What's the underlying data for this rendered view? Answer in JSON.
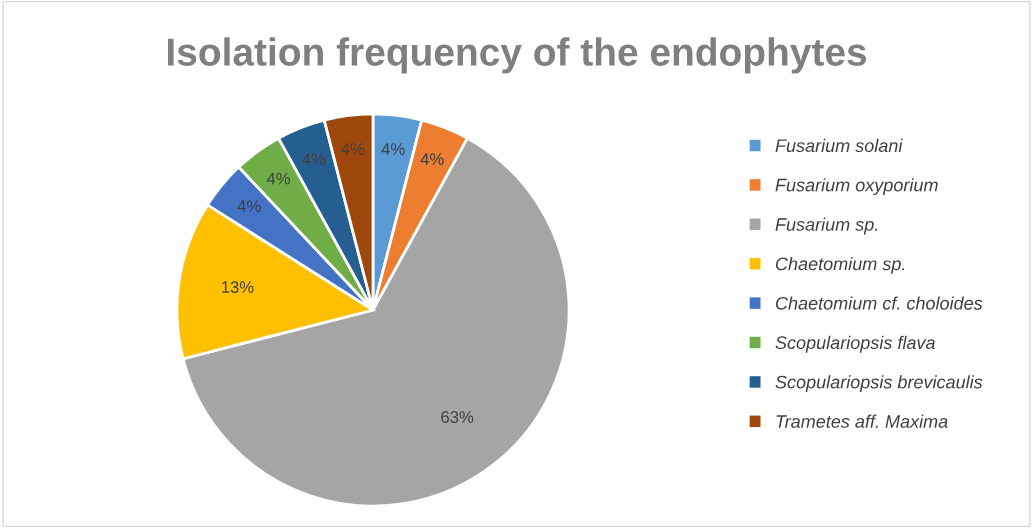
{
  "chart_data": {
    "type": "pie",
    "title": "Isolation frequency of the endophytes",
    "categories": [
      "Fusarium solani",
      "Fusarium oxyporium",
      "Fusarium sp.",
      "Chaetomium sp.",
      "Chaetomium cf. choloides",
      "Scopulariopsis flava",
      "Scopulariopsis brevicaulis",
      "Trametes aff. Maxima"
    ],
    "values": [
      4,
      4,
      63,
      13,
      4,
      4,
      4,
      4
    ],
    "value_labels": [
      "4%",
      "4%",
      "63%",
      "13%",
      "4%",
      "4%",
      "4%",
      "4%"
    ],
    "colors": [
      "#5b9bd5",
      "#ed7d31",
      "#a5a5a5",
      "#ffc000",
      "#4472c4",
      "#70ad47",
      "#255e91",
      "#9e480e"
    ],
    "legend": "right"
  }
}
